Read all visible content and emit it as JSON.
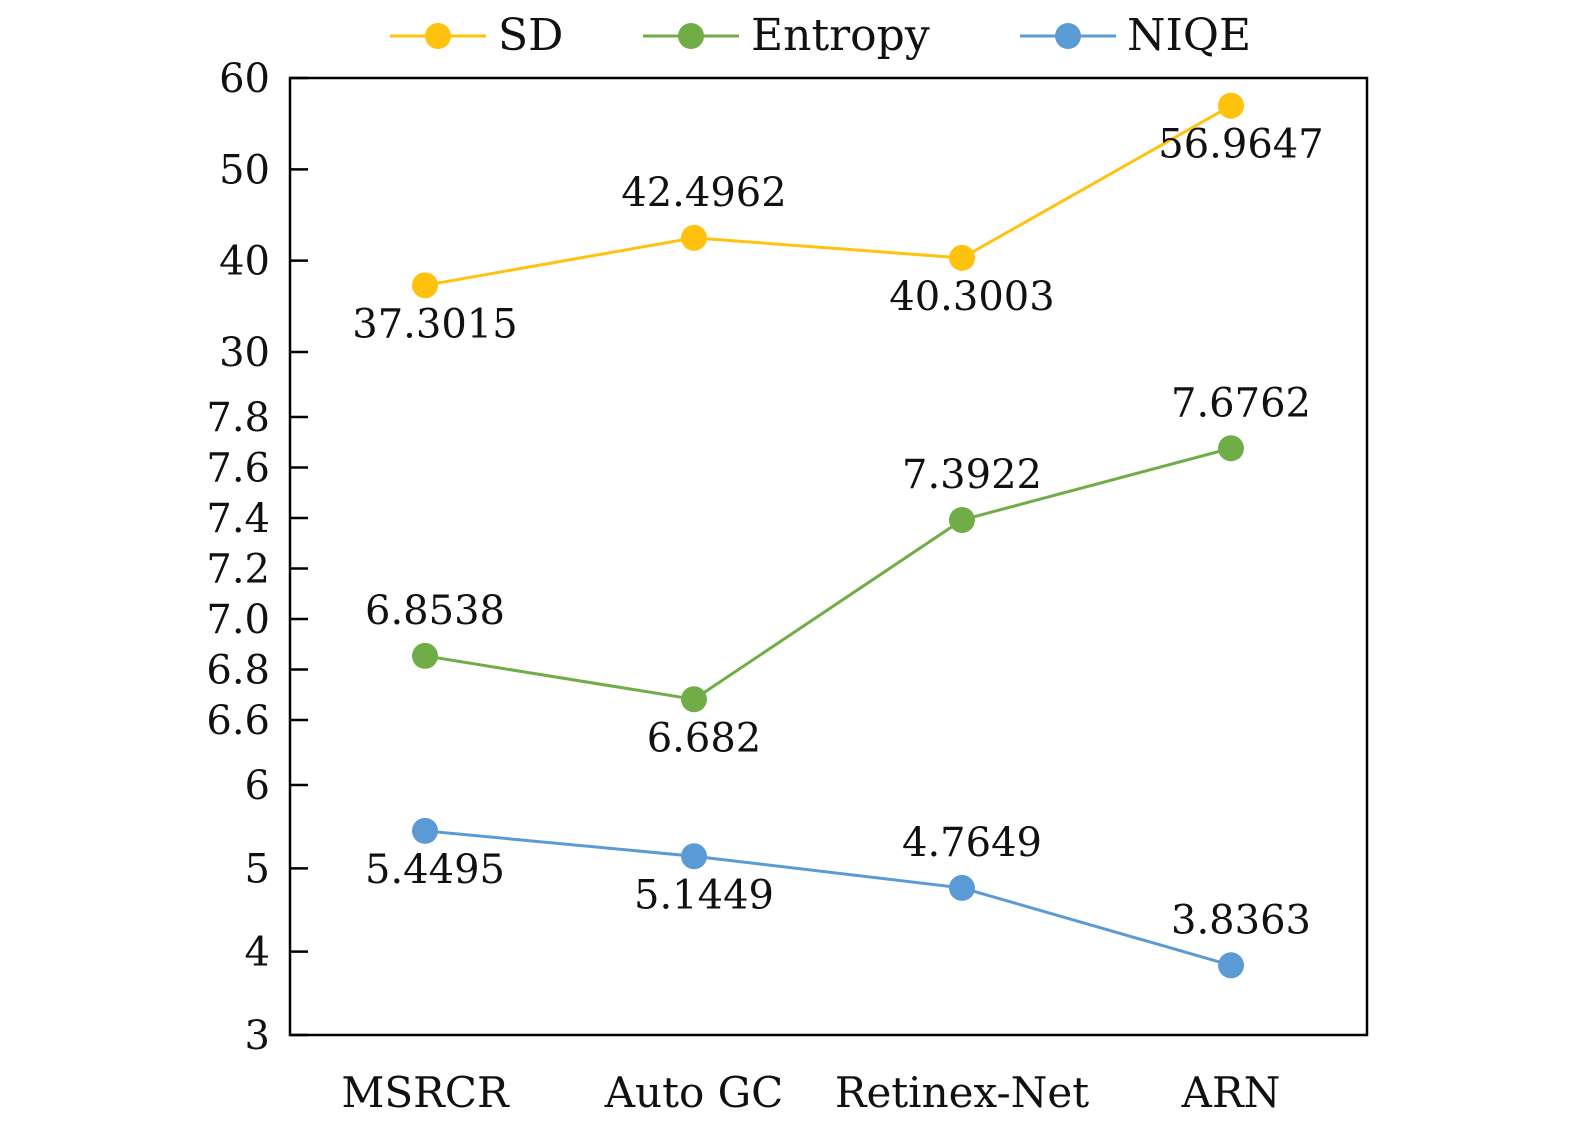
{
  "chart_data": {
    "type": "line",
    "categories": [
      "MSRCR",
      "Auto GC",
      "Retinex-Net",
      "ARN"
    ],
    "axis": {
      "segmented": true,
      "segments": [
        {
          "range": [
            3,
            6
          ],
          "ticks": [
            3,
            4,
            5,
            6
          ],
          "tick_labels": [
            "3",
            "4",
            "5",
            "6"
          ]
        },
        {
          "range": [
            6.6,
            7.8
          ],
          "ticks": [
            6.6,
            6.8,
            7.0,
            7.2,
            7.4,
            7.6,
            7.8
          ],
          "tick_labels": [
            "6.6",
            "6.8",
            "7.0",
            "7.2",
            "7.4",
            "7.6",
            "7.8"
          ]
        },
        {
          "range": [
            30,
            60
          ],
          "ticks": [
            30,
            40,
            50,
            60
          ],
          "tick_labels": [
            "30",
            "40",
            "50",
            "60"
          ]
        }
      ]
    },
    "grid": false,
    "legend": {
      "placement": "top"
    },
    "series": [
      {
        "name": "SD",
        "color": "#FFC20E",
        "segment": 2,
        "values": [
          37.3015,
          42.4962,
          40.3003,
          56.9647
        ],
        "labels": [
          "37.3015",
          "42.4962",
          "40.3003",
          "56.9647"
        ],
        "label_positions": [
          "below",
          "above",
          "below",
          "below"
        ]
      },
      {
        "name": "Entropy",
        "color": "#70AD47",
        "segment": 1,
        "values": [
          6.8538,
          6.682,
          7.3922,
          7.6762
        ],
        "labels": [
          "6.8538",
          "6.682",
          "7.3922",
          "7.6762"
        ],
        "label_positions": [
          "above",
          "below",
          "above",
          "above"
        ]
      },
      {
        "name": "NIQE",
        "color": "#5B9BD5",
        "segment": 0,
        "values": [
          5.4495,
          5.1449,
          4.7649,
          3.8363
        ],
        "labels": [
          "5.4495",
          "5.1449",
          "4.7649",
          "3.8363"
        ],
        "label_positions": [
          "below",
          "below",
          "above",
          "above"
        ]
      }
    ]
  }
}
